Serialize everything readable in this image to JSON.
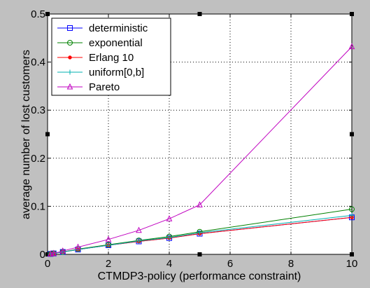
{
  "chart_data": {
    "type": "line",
    "xlabel": "CTMDP3-policy (performance constraint)",
    "ylabel": "average number of lost customers",
    "xlim": [
      0,
      10
    ],
    "ylim": [
      0,
      0.5
    ],
    "xticks": [
      0,
      2,
      4,
      6,
      8,
      10
    ],
    "yticks": [
      0,
      0.1,
      0.2,
      0.3,
      0.4,
      0.5
    ],
    "ytick_labels": [
      "0",
      "0.1",
      "0.2",
      "0.3",
      "0.4",
      "0.5"
    ],
    "grid": true,
    "legend_position": "top-left",
    "x": [
      0.1,
      0.2,
      0.5,
      1,
      2,
      3,
      4,
      5,
      10
    ],
    "series": [
      {
        "name": "deterministic",
        "color": "#0000ff",
        "marker": "square",
        "values": [
          0.001,
          0.002,
          0.005,
          0.01,
          0.019,
          0.027,
          0.034,
          0.043,
          0.077
        ]
      },
      {
        "name": "exponential",
        "color": "#008000",
        "marker": "circle",
        "values": [
          0.001,
          0.002,
          0.005,
          0.011,
          0.02,
          0.029,
          0.037,
          0.047,
          0.094
        ]
      },
      {
        "name": "Erlang 10",
        "color": "#ff0000",
        "marker": "dot",
        "values": [
          0.001,
          0.002,
          0.005,
          0.01,
          0.019,
          0.027,
          0.034,
          0.043,
          0.077
        ]
      },
      {
        "name": "uniform[0,b]",
        "color": "#00b0b0",
        "marker": "plus",
        "values": [
          0.001,
          0.002,
          0.005,
          0.01,
          0.019,
          0.028,
          0.035,
          0.045,
          0.081
        ]
      },
      {
        "name": "Pareto",
        "color": "#c000c0",
        "marker": "triangle",
        "values": [
          0.001,
          0.002,
          0.007,
          0.015,
          0.031,
          0.05,
          0.074,
          0.103,
          0.432
        ]
      }
    ]
  }
}
